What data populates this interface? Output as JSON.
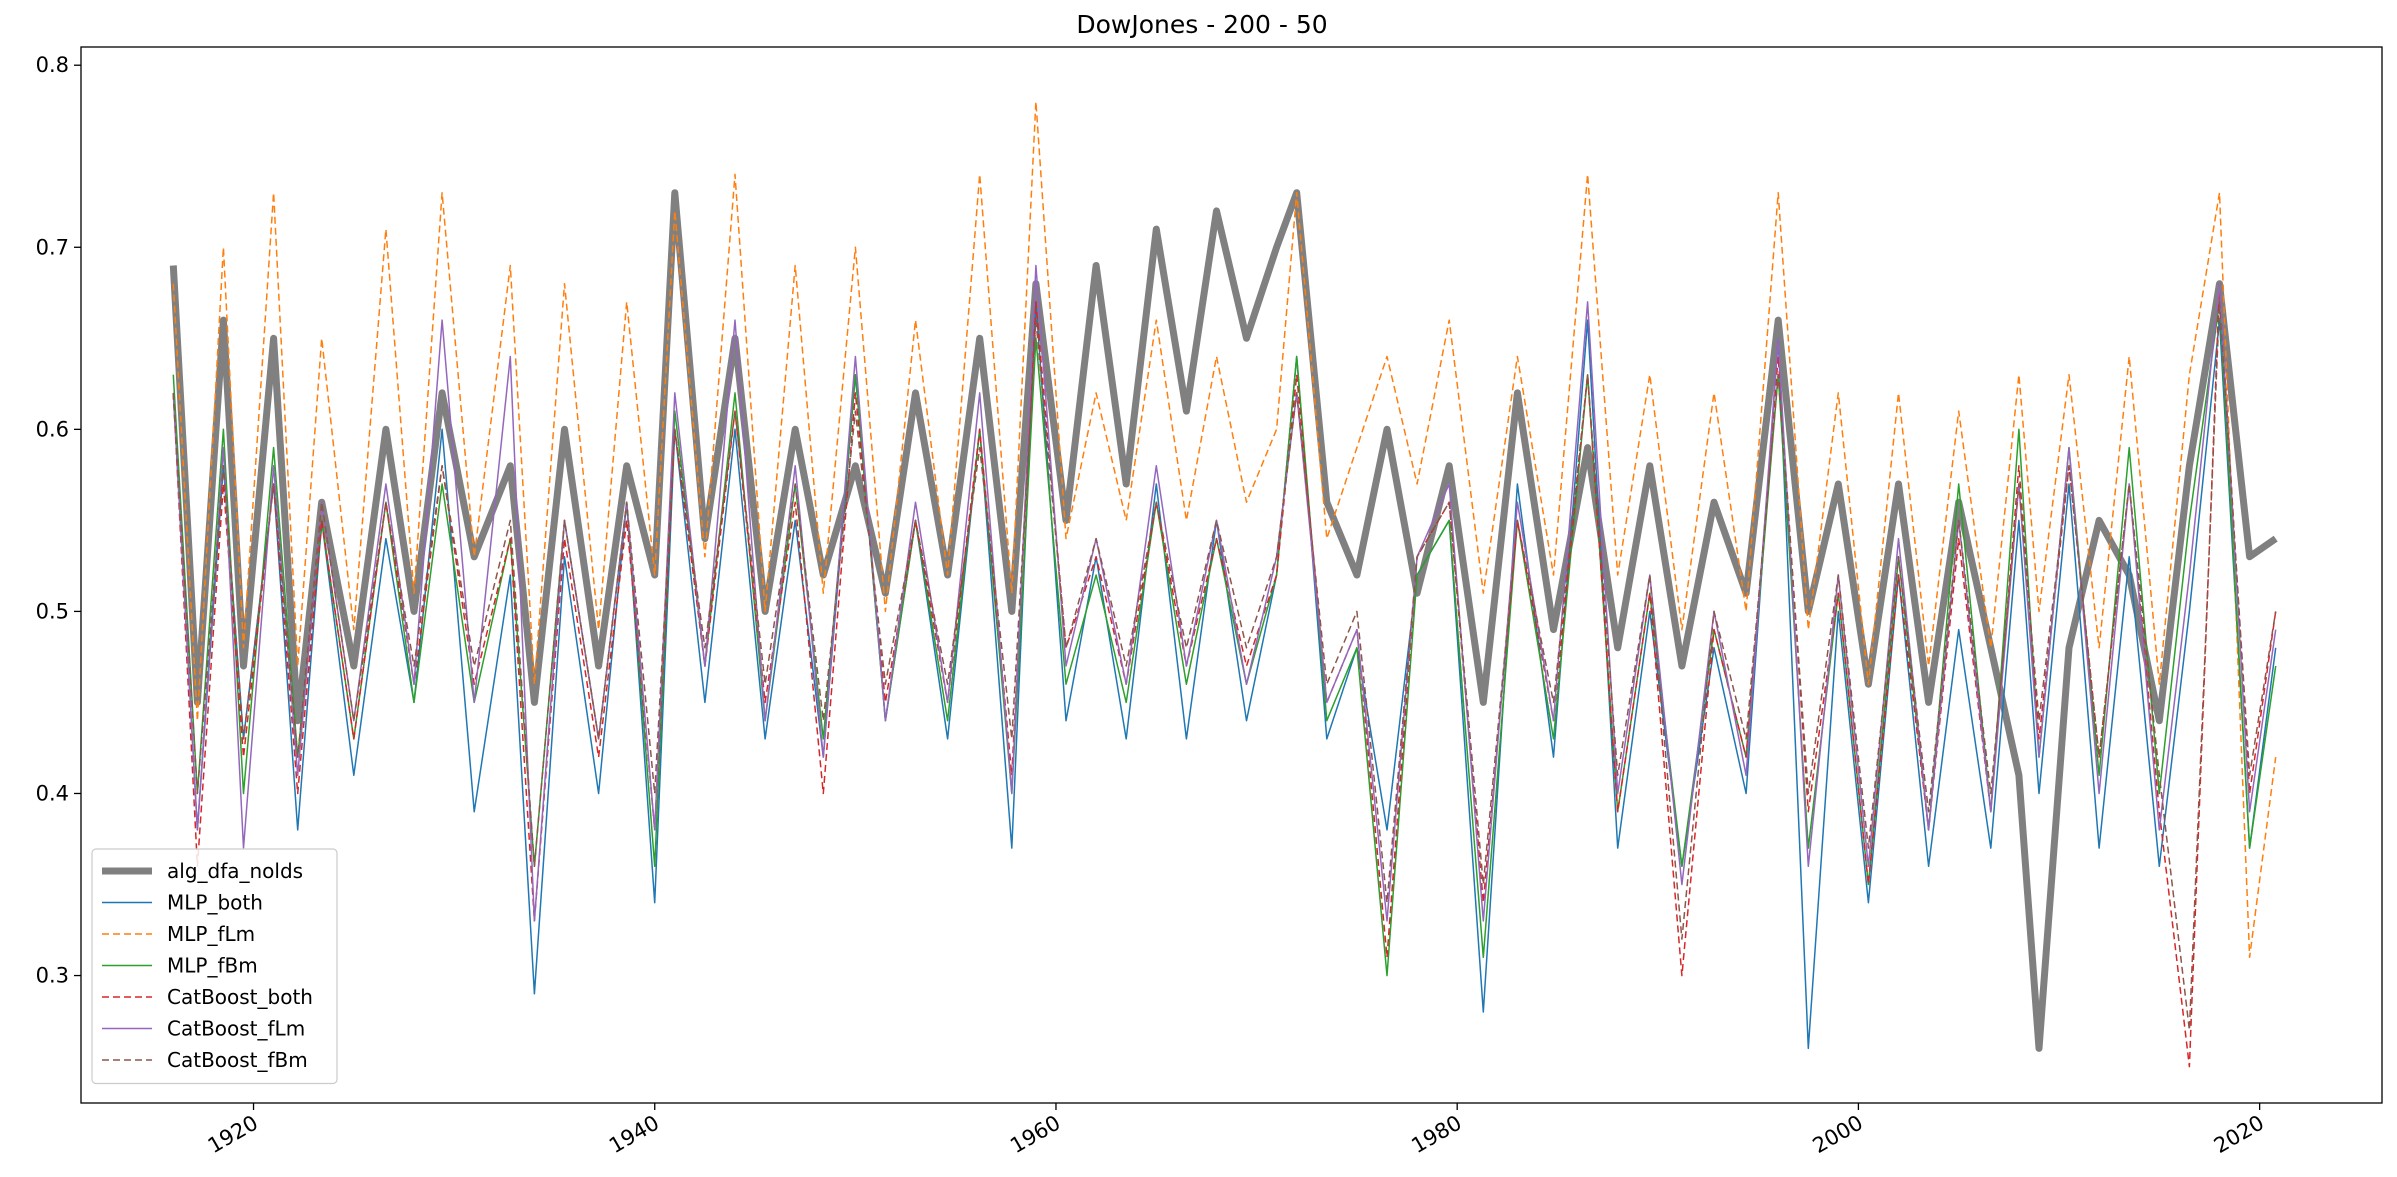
{
  "chart_data": {
    "type": "line",
    "title": "DowJones - 200 - 50",
    "xlabel": "",
    "ylabel": "",
    "xlim": [
      1911.4,
      2026.1
    ],
    "ylim": [
      0.23,
      0.81
    ],
    "x_ticks": [
      1920,
      1940,
      1960,
      1980,
      2000,
      2020
    ],
    "x_tick_labels": [
      "1920",
      "1940",
      "1960",
      "1980",
      "2000",
      "2020"
    ],
    "y_ticks": [
      0.3,
      0.4,
      0.5,
      0.6,
      0.7,
      0.8
    ],
    "y_tick_labels": [
      "0.3",
      "0.4",
      "0.5",
      "0.6",
      "0.7",
      "0.8"
    ],
    "grid": false,
    "legend_position": "lower-left",
    "x": [
      1916.0,
      1917.2,
      1918.5,
      1919.5,
      1921.0,
      1922.2,
      1923.4,
      1925.0,
      1926.6,
      1928.0,
      1929.4,
      1931.0,
      1932.8,
      1934.0,
      1935.5,
      1937.2,
      1938.6,
      1940.0,
      1941.0,
      1942.5,
      1944.0,
      1945.5,
      1947.0,
      1948.4,
      1950.0,
      1951.5,
      1953.0,
      1954.6,
      1956.2,
      1957.8,
      1959.0,
      1960.5,
      1962.0,
      1963.5,
      1965.0,
      1966.5,
      1968.0,
      1969.5,
      1971.0,
      1972.0,
      1973.5,
      1975.0,
      1976.5,
      1978.0,
      1979.6,
      1981.3,
      1983.0,
      1984.8,
      1986.5,
      1988.0,
      1989.6,
      1991.2,
      1992.8,
      1994.4,
      1996.0,
      1997.5,
      1999.0,
      2000.5,
      2002.0,
      2003.5,
      2005.0,
      2006.6,
      2008.0,
      2009.0,
      2010.5,
      2012.0,
      2013.5,
      2015.0,
      2016.5,
      2018.0,
      2019.5,
      2020.8
    ],
    "series": [
      {
        "name": "alg_dfa_nolds",
        "color": "#808080",
        "dash": "solid",
        "width": 7,
        "values": [
          0.69,
          0.45,
          0.66,
          0.47,
          0.65,
          0.44,
          0.56,
          0.47,
          0.6,
          0.5,
          0.62,
          0.53,
          0.58,
          0.45,
          0.6,
          0.47,
          0.58,
          0.52,
          0.73,
          0.54,
          0.65,
          0.5,
          0.6,
          0.52,
          0.58,
          0.51,
          0.62,
          0.52,
          0.65,
          0.5,
          0.68,
          0.55,
          0.69,
          0.57,
          0.71,
          0.61,
          0.72,
          0.65,
          0.7,
          0.73,
          0.56,
          0.52,
          0.6,
          0.51,
          0.58,
          0.45,
          0.62,
          0.49,
          0.59,
          0.48,
          0.58,
          0.47,
          0.56,
          0.51,
          0.66,
          0.5,
          0.57,
          0.46,
          0.57,
          0.45,
          0.56,
          0.48,
          0.41,
          0.26,
          0.48,
          0.55,
          0.52,
          0.44,
          0.58,
          0.68,
          0.53,
          0.54
        ]
      },
      {
        "name": "MLP_both",
        "color": "#1f77b4",
        "dash": "solid",
        "width": 1.5,
        "values": [
          0.62,
          0.38,
          0.58,
          0.43,
          0.57,
          0.38,
          0.55,
          0.41,
          0.54,
          0.45,
          0.6,
          0.39,
          0.52,
          0.29,
          0.53,
          0.4,
          0.56,
          0.34,
          0.6,
          0.45,
          0.6,
          0.43,
          0.55,
          0.42,
          0.63,
          0.44,
          0.55,
          0.43,
          0.6,
          0.37,
          0.67,
          0.44,
          0.53,
          0.43,
          0.57,
          0.43,
          0.55,
          0.44,
          0.52,
          0.64,
          0.43,
          0.48,
          0.38,
          0.52,
          0.55,
          0.28,
          0.57,
          0.42,
          0.66,
          0.37,
          0.5,
          0.36,
          0.48,
          0.4,
          0.65,
          0.26,
          0.5,
          0.34,
          0.52,
          0.36,
          0.49,
          0.37,
          0.55,
          0.4,
          0.57,
          0.37,
          0.53,
          0.36,
          0.5,
          0.66,
          0.37,
          0.48
        ]
      },
      {
        "name": "MLP_fLm",
        "color": "#ff7f0e",
        "dash": "7,4",
        "width": 1.5,
        "values": [
          0.68,
          0.44,
          0.7,
          0.48,
          0.73,
          0.47,
          0.65,
          0.49,
          0.71,
          0.51,
          0.73,
          0.53,
          0.69,
          0.46,
          0.68,
          0.49,
          0.67,
          0.52,
          0.72,
          0.53,
          0.74,
          0.5,
          0.69,
          0.51,
          0.7,
          0.5,
          0.66,
          0.52,
          0.74,
          0.51,
          0.78,
          0.54,
          0.62,
          0.55,
          0.66,
          0.55,
          0.64,
          0.56,
          0.6,
          0.73,
          0.54,
          0.59,
          0.64,
          0.57,
          0.66,
          0.51,
          0.64,
          0.52,
          0.74,
          0.52,
          0.63,
          0.49,
          0.62,
          0.5,
          0.73,
          0.49,
          0.62,
          0.46,
          0.62,
          0.47,
          0.61,
          0.48,
          0.63,
          0.5,
          0.63,
          0.48,
          0.64,
          0.46,
          0.63,
          0.73,
          0.31,
          0.42
        ]
      },
      {
        "name": "MLP_fBm",
        "color": "#2ca02c",
        "dash": "solid",
        "width": 1.5,
        "values": [
          0.63,
          0.4,
          0.6,
          0.4,
          0.59,
          0.42,
          0.55,
          0.43,
          0.56,
          0.45,
          0.57,
          0.45,
          0.54,
          0.36,
          0.55,
          0.43,
          0.56,
          0.36,
          0.61,
          0.47,
          0.62,
          0.44,
          0.57,
          0.43,
          0.63,
          0.44,
          0.55,
          0.44,
          0.6,
          0.4,
          0.65,
          0.46,
          0.52,
          0.45,
          0.56,
          0.46,
          0.54,
          0.46,
          0.52,
          0.64,
          0.44,
          0.48,
          0.3,
          0.52,
          0.55,
          0.31,
          0.55,
          0.43,
          0.63,
          0.39,
          0.51,
          0.36,
          0.49,
          0.42,
          0.63,
          0.37,
          0.51,
          0.35,
          0.53,
          0.38,
          0.57,
          0.39,
          0.6,
          0.42,
          0.59,
          0.41,
          0.59,
          0.4,
          0.55,
          0.67,
          0.37,
          0.47
        ]
      },
      {
        "name": "CatBoost_both",
        "color": "#d62728",
        "dash": "7,4",
        "width": 1.5,
        "values": [
          0.62,
          0.36,
          0.57,
          0.42,
          0.57,
          0.4,
          0.55,
          0.43,
          0.56,
          0.46,
          0.58,
          0.46,
          0.54,
          0.33,
          0.54,
          0.42,
          0.55,
          0.38,
          0.6,
          0.47,
          0.61,
          0.45,
          0.56,
          0.4,
          0.62,
          0.45,
          0.55,
          0.45,
          0.6,
          0.41,
          0.67,
          0.48,
          0.53,
          0.46,
          0.56,
          0.47,
          0.54,
          0.47,
          0.52,
          0.63,
          0.45,
          0.49,
          0.31,
          0.53,
          0.56,
          0.34,
          0.55,
          0.44,
          0.63,
          0.39,
          0.51,
          0.3,
          0.49,
          0.42,
          0.64,
          0.39,
          0.51,
          0.35,
          0.52,
          0.38,
          0.54,
          0.39,
          0.58,
          0.43,
          0.58,
          0.42,
          0.57,
          0.39,
          0.25,
          0.68,
          0.4,
          0.5
        ]
      },
      {
        "name": "CatBoost_fLm",
        "color": "#9467bd",
        "dash": "solid",
        "width": 1.5,
        "values": [
          0.62,
          0.38,
          0.59,
          0.37,
          0.58,
          0.41,
          0.56,
          0.44,
          0.57,
          0.46,
          0.66,
          0.45,
          0.64,
          0.33,
          0.55,
          0.43,
          0.56,
          0.38,
          0.62,
          0.47,
          0.66,
          0.44,
          0.58,
          0.42,
          0.64,
          0.44,
          0.56,
          0.45,
          0.62,
          0.4,
          0.69,
          0.47,
          0.54,
          0.46,
          0.58,
          0.47,
          0.55,
          0.46,
          0.53,
          0.62,
          0.45,
          0.49,
          0.33,
          0.53,
          0.57,
          0.33,
          0.56,
          0.44,
          0.67,
          0.4,
          0.52,
          0.35,
          0.5,
          0.41,
          0.65,
          0.36,
          0.52,
          0.36,
          0.54,
          0.38,
          0.55,
          0.39,
          0.57,
          0.42,
          0.59,
          0.4,
          0.57,
          0.38,
          0.52,
          0.68,
          0.39,
          0.49
        ]
      },
      {
        "name": "CatBoost_fBm",
        "color": "#8c564b",
        "dash": "7,4",
        "width": 1.5,
        "values": [
          0.62,
          0.4,
          0.58,
          0.43,
          0.57,
          0.42,
          0.56,
          0.44,
          0.56,
          0.47,
          0.58,
          0.47,
          0.55,
          0.36,
          0.55,
          0.43,
          0.56,
          0.4,
          0.6,
          0.48,
          0.61,
          0.46,
          0.57,
          0.44,
          0.61,
          0.46,
          0.55,
          0.46,
          0.59,
          0.43,
          0.66,
          0.48,
          0.54,
          0.47,
          0.56,
          0.48,
          0.55,
          0.48,
          0.53,
          0.62,
          0.46,
          0.5,
          0.34,
          0.53,
          0.56,
          0.35,
          0.55,
          0.45,
          0.63,
          0.41,
          0.52,
          0.32,
          0.5,
          0.43,
          0.63,
          0.4,
          0.52,
          0.37,
          0.53,
          0.39,
          0.55,
          0.4,
          0.57,
          0.44,
          0.58,
          0.42,
          0.57,
          0.41,
          0.27,
          0.67,
          0.41,
          0.5
        ]
      }
    ]
  }
}
